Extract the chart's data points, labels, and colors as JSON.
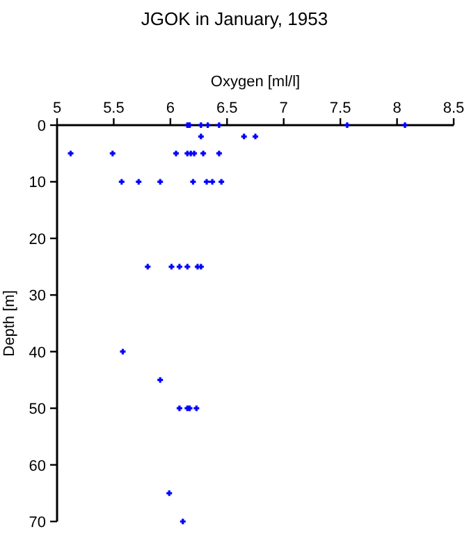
{
  "chart_data": {
    "type": "scatter",
    "title": "JGOK in January, 1953",
    "xlabel": "Oxygen [ml/l]",
    "ylabel": "Depth [m]",
    "xlim": [
      5,
      8.5
    ],
    "xticks": [
      5,
      5.5,
      6,
      6.5,
      7,
      7.5,
      8,
      8.5
    ],
    "ylim": [
      70,
      0
    ],
    "yticks": [
      0,
      10,
      20,
      30,
      40,
      50,
      60,
      70
    ],
    "marker": "cross",
    "grid": false,
    "series": [
      {
        "color": "#0000ff",
        "x": [
          6.15,
          6.17,
          6.27,
          6.33,
          6.43,
          7.56,
          8.07,
          6.27,
          6.65,
          6.75,
          5.12,
          5.49,
          6.05,
          6.15,
          6.18,
          6.21,
          6.29,
          6.43,
          5.57,
          5.72,
          5.91,
          6.2,
          6.32,
          6.37,
          6.45,
          5.8,
          6.01,
          6.08,
          6.15,
          6.24,
          6.27,
          5.58,
          5.91,
          6.08,
          6.15,
          6.17,
          6.23,
          5.99,
          6.11
        ],
        "values": [
          0,
          0,
          0,
          0,
          0,
          0,
          0,
          2,
          2,
          2,
          5,
          5,
          5,
          5,
          5,
          5,
          5,
          5,
          10,
          10,
          10,
          10,
          10,
          10,
          10,
          25,
          25,
          25,
          25,
          25,
          25,
          40,
          45,
          50,
          50,
          50,
          50,
          65,
          70
        ]
      }
    ]
  }
}
